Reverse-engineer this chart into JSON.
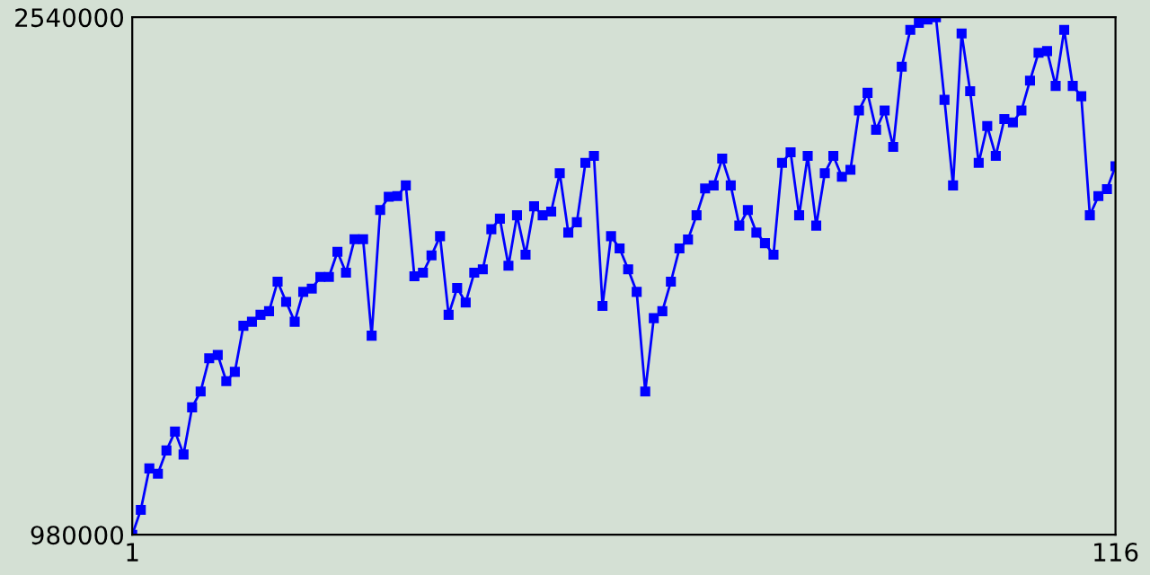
{
  "chart_data": {
    "type": "line",
    "x": [
      1,
      2,
      3,
      4,
      5,
      6,
      7,
      8,
      9,
      10,
      11,
      12,
      13,
      14,
      15,
      16,
      17,
      18,
      19,
      20,
      21,
      22,
      23,
      24,
      25,
      26,
      27,
      28,
      29,
      30,
      31,
      32,
      33,
      34,
      35,
      36,
      37,
      38,
      39,
      40,
      41,
      42,
      43,
      44,
      45,
      46,
      47,
      48,
      49,
      50,
      51,
      52,
      53,
      54,
      55,
      56,
      57,
      58,
      59,
      60,
      61,
      62,
      63,
      64,
      65,
      66,
      67,
      68,
      69,
      70,
      71,
      72,
      73,
      74,
      75,
      76,
      77,
      78,
      79,
      80,
      81,
      82,
      83,
      84,
      85,
      86,
      87,
      88,
      89,
      90,
      91,
      92,
      93,
      94,
      95,
      96,
      97,
      98,
      99,
      100,
      101,
      102,
      103,
      104,
      105,
      106,
      107,
      108,
      109,
      110,
      111,
      112,
      113,
      114,
      115,
      116
    ],
    "series": [
      {
        "color": "#0000ff",
        "values": [
          980000,
          1055000,
          1180000,
          1164000,
          1234000,
          1291000,
          1222000,
          1364000,
          1412000,
          1512000,
          1522000,
          1443000,
          1471000,
          1610000,
          1622000,
          1643000,
          1654000,
          1743000,
          1682000,
          1622000,
          1712000,
          1722000,
          1757000,
          1757000,
          1833000,
          1770000,
          1871000,
          1871000,
          1580000,
          1959000,
          1999000,
          2001000,
          2033000,
          1759000,
          1770000,
          1822000,
          1880000,
          1643000,
          1724000,
          1680000,
          1770000,
          1780000,
          1901000,
          1933000,
          1791000,
          1943000,
          1824000,
          1970000,
          1943000,
          1954000,
          2070000,
          1891000,
          1922000,
          2101000,
          2122000,
          1670000,
          1880000,
          1843000,
          1780000,
          1712000,
          1412000,
          1633000,
          1654000,
          1743000,
          1843000,
          1870000,
          1943000,
          2024000,
          2033000,
          2114000,
          2033000,
          1912000,
          1959000,
          1891000,
          1859000,
          1824000,
          2101000,
          2133000,
          1943000,
          2122000,
          1912000,
          2070000,
          2122000,
          2059000,
          2080000,
          2259000,
          2312000,
          2201000,
          2259000,
          2149000,
          2391000,
          2502000,
          2523000,
          2533000,
          2540000,
          2291000,
          2033000,
          2491000,
          2317000,
          2101000,
          2212000,
          2122000,
          2233000,
          2223000,
          2259000,
          2349000,
          2433000,
          2438000,
          2333000,
          2502000,
          2333000,
          2302000,
          1943000,
          2001000,
          2022000,
          2091000
        ]
      }
    ],
    "xlim": [
      1,
      116
    ],
    "xticks": [
      1,
      116
    ],
    "ylim": [
      980000,
      2540000
    ],
    "yticks": [
      980000,
      2540000
    ],
    "marker": "square",
    "line_style": "solid",
    "grid": false,
    "legend": false
  }
}
